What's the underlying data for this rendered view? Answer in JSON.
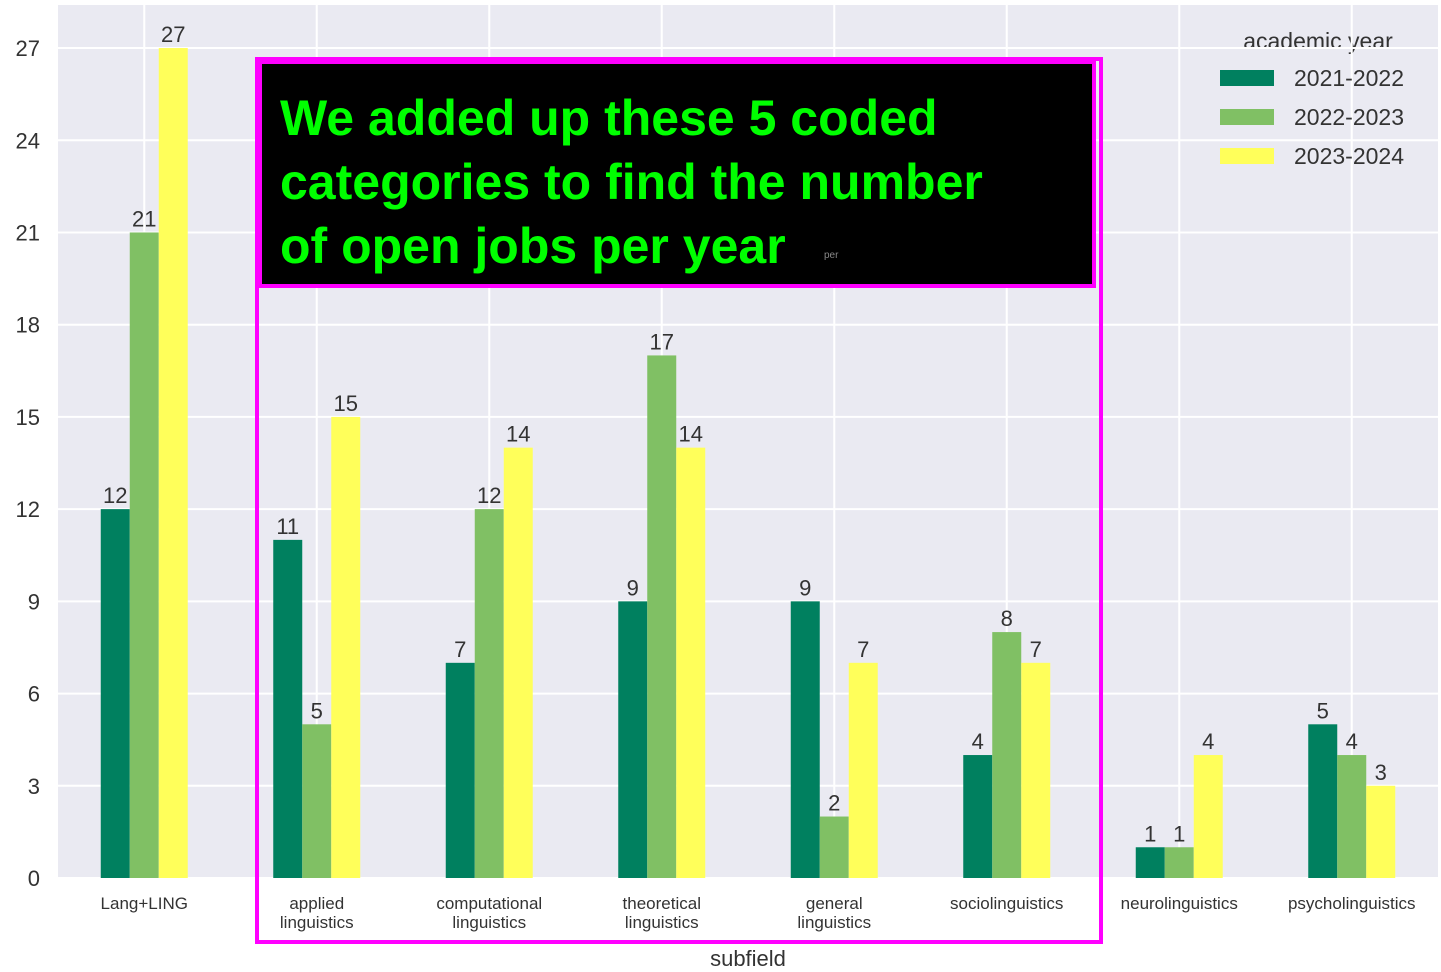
{
  "chart_data": {
    "type": "bar",
    "categories": [
      "Lang+LING",
      "applied\nlinguistics",
      "computational\nlinguistics",
      "theoretical\nlinguistics",
      "general\nlinguistics",
      "sociolinguistics",
      "neurolinguistics",
      "psycholinguistics"
    ],
    "series": [
      {
        "name": "2021-2022",
        "color": "#00805f",
        "values": [
          12,
          11,
          7,
          9,
          9,
          4,
          1,
          5
        ]
      },
      {
        "name": "2022-2023",
        "color": "#80c064",
        "values": [
          21,
          5,
          12,
          17,
          2,
          8,
          1,
          4
        ]
      },
      {
        "name": "2023-2024",
        "color": "#ffff5a",
        "values": [
          27,
          15,
          14,
          14,
          7,
          7,
          4,
          3
        ]
      }
    ],
    "ylim": [
      0,
      28.4
    ],
    "yticks": [
      0,
      3,
      6,
      9,
      12,
      15,
      18,
      21,
      24,
      27
    ],
    "xlabel": "subfield",
    "legend_title": "academic year",
    "legend": "upper right",
    "grid": true
  },
  "annotation": {
    "text": "We added up these 5 coded\ncategories to find the number\nof open jobs per year",
    "note": "per"
  }
}
